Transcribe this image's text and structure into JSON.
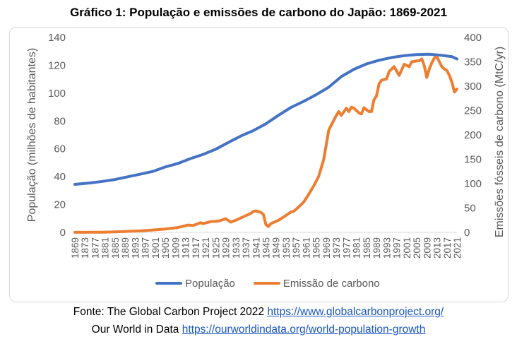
{
  "title": "Gráfico 1: População e emissões de carbono do Japão: 1869-2021",
  "source": {
    "line1_prefix": "Fonte: The Global Carbon Project 2022",
    "line1_link": "https://www.globalcarbonproject.org/",
    "line2_prefix": "Our World in Data",
    "line2_link": "https://ourworldindata.org/world-population-growth"
  },
  "colors": {
    "population": "#4472c4",
    "emissions": "#ed7d31"
  },
  "chart_data": {
    "type": "line",
    "title": "Gráfico 1: População e emissões de carbono do Japão: 1869-2021",
    "xlabel": "",
    "ylabel": "População (milhões de habitantes)",
    "y2label": "Emissões fósseis de carbono (MtC/yr)",
    "xlim": [
      1869,
      2021
    ],
    "ylim": [
      0,
      140
    ],
    "y2lim": [
      0,
      400
    ],
    "x_ticks": [
      1869,
      1873,
      1877,
      1881,
      1885,
      1889,
      1893,
      1897,
      1901,
      1905,
      1909,
      1913,
      1917,
      1921,
      1925,
      1929,
      1933,
      1937,
      1941,
      1945,
      1949,
      1953,
      1957,
      1961,
      1965,
      1969,
      1973,
      1977,
      1981,
      1985,
      1989,
      1993,
      1997,
      2001,
      2005,
      2009,
      2013,
      2017,
      2021
    ],
    "y_ticks": [
      0,
      20,
      40,
      60,
      80,
      100,
      120,
      140
    ],
    "y2_ticks": [
      0,
      50,
      100,
      150,
      200,
      250,
      300,
      350,
      400
    ],
    "grid": false,
    "legend": "bottom",
    "series": [
      {
        "name": "População",
        "axis": "left",
        "points": [
          [
            1869,
            34.5
          ],
          [
            1875,
            35.5
          ],
          [
            1880,
            36.6
          ],
          [
            1885,
            38
          ],
          [
            1890,
            39.9
          ],
          [
            1895,
            41.8
          ],
          [
            1900,
            43.8
          ],
          [
            1905,
            47
          ],
          [
            1910,
            49.5
          ],
          [
            1915,
            53
          ],
          [
            1920,
            56
          ],
          [
            1925,
            59.7
          ],
          [
            1930,
            64.5
          ],
          [
            1935,
            69.2
          ],
          [
            1940,
            73.1
          ],
          [
            1945,
            78
          ],
          [
            1950,
            84.1
          ],
          [
            1955,
            89.8
          ],
          [
            1960,
            94.1
          ],
          [
            1965,
            98.9
          ],
          [
            1970,
            104.3
          ],
          [
            1975,
            111.9
          ],
          [
            1980,
            117.1
          ],
          [
            1985,
            121
          ],
          [
            1990,
            123.6
          ],
          [
            1995,
            125.6
          ],
          [
            2000,
            126.9
          ],
          [
            2005,
            127.7
          ],
          [
            2010,
            128
          ],
          [
            2015,
            127.1
          ],
          [
            2019,
            126.2
          ],
          [
            2021,
            124.6
          ]
        ]
      },
      {
        "name": "Emissão de carbono",
        "axis": "right",
        "points": [
          [
            1869,
            0.2
          ],
          [
            1880,
            0.5
          ],
          [
            1887,
            1.5
          ],
          [
            1895,
            3
          ],
          [
            1900,
            5
          ],
          [
            1905,
            7
          ],
          [
            1910,
            10
          ],
          [
            1914,
            15
          ],
          [
            1916,
            14
          ],
          [
            1919,
            20
          ],
          [
            1920,
            18
          ],
          [
            1923,
            22
          ],
          [
            1926,
            23
          ],
          [
            1929,
            28
          ],
          [
            1931,
            21
          ],
          [
            1933,
            25
          ],
          [
            1936,
            32
          ],
          [
            1939,
            39
          ],
          [
            1940,
            43
          ],
          [
            1941,
            44
          ],
          [
            1943,
            41
          ],
          [
            1944,
            37
          ],
          [
            1945,
            16
          ],
          [
            1946,
            12
          ],
          [
            1947,
            18
          ],
          [
            1950,
            25
          ],
          [
            1953,
            35
          ],
          [
            1955,
            42
          ],
          [
            1956,
            43
          ],
          [
            1958,
            52
          ],
          [
            1960,
            62
          ],
          [
            1962,
            78
          ],
          [
            1964,
            95
          ],
          [
            1966,
            115
          ],
          [
            1968,
            150
          ],
          [
            1970,
            210
          ],
          [
            1971,
            220
          ],
          [
            1973,
            240
          ],
          [
            1974,
            248
          ],
          [
            1975,
            240
          ],
          [
            1977,
            255
          ],
          [
            1978,
            248
          ],
          [
            1979,
            257
          ],
          [
            1980,
            255
          ],
          [
            1982,
            245
          ],
          [
            1983,
            243
          ],
          [
            1984,
            256
          ],
          [
            1986,
            248
          ],
          [
            1987,
            248
          ],
          [
            1988,
            272
          ],
          [
            1989,
            280
          ],
          [
            1990,
            305
          ],
          [
            1991,
            312
          ],
          [
            1993,
            315
          ],
          [
            1994,
            330
          ],
          [
            1996,
            340
          ],
          [
            1998,
            322
          ],
          [
            2000,
            345
          ],
          [
            2002,
            340
          ],
          [
            2003,
            350
          ],
          [
            2005,
            352
          ],
          [
            2006,
            352
          ],
          [
            2007,
            356
          ],
          [
            2008,
            342
          ],
          [
            2009,
            318
          ],
          [
            2010,
            335
          ],
          [
            2011,
            348
          ],
          [
            2012,
            358
          ],
          [
            2013,
            360
          ],
          [
            2014,
            350
          ],
          [
            2015,
            340
          ],
          [
            2016,
            335
          ],
          [
            2017,
            332
          ],
          [
            2018,
            322
          ],
          [
            2019,
            308
          ],
          [
            2020,
            288
          ],
          [
            2021,
            294
          ]
        ]
      }
    ]
  }
}
